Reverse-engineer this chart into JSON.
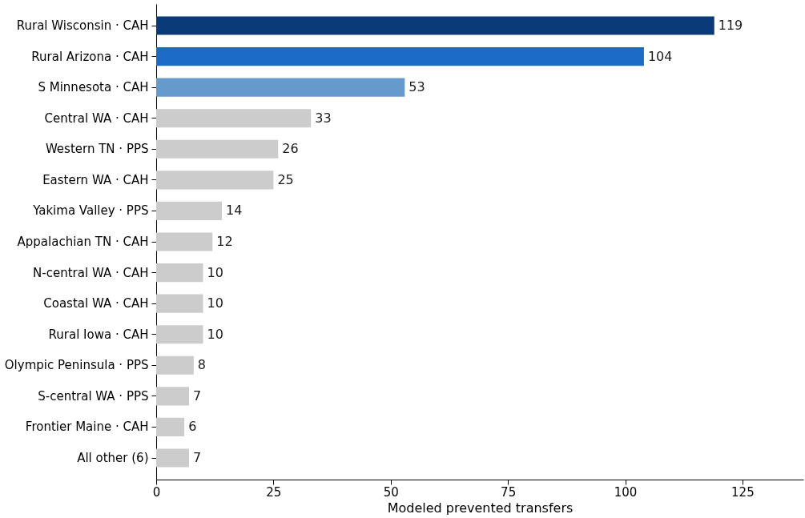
{
  "chart_data": {
    "type": "bar",
    "orientation": "horizontal",
    "xlabel": "Modeled prevented transfers",
    "categories": [
      "Rural Wisconsin · CAH",
      "Rural Arizona · CAH",
      "S Minnesota · CAH",
      "Central WA · CAH",
      "Western TN · PPS",
      "Eastern WA · CAH",
      "Yakima Valley · PPS",
      "Appalachian TN · CAH",
      "N-central WA · CAH",
      "Coastal WA · CAH",
      "Rural Iowa · CAH",
      "Olympic Peninsula · PPS",
      "S-central WA · PPS",
      "Frontier Maine · CAH",
      "All other (6)"
    ],
    "values": [
      119,
      104,
      53,
      33,
      26,
      25,
      14,
      12,
      10,
      10,
      10,
      8,
      7,
      6,
      7
    ],
    "colors": [
      "#0b3a78",
      "#1c6bc4",
      "#6699cc",
      "#cccccc",
      "#cccccc",
      "#cccccc",
      "#cccccc",
      "#cccccc",
      "#cccccc",
      "#cccccc",
      "#cccccc",
      "#cccccc",
      "#cccccc",
      "#cccccc",
      "#cccccc"
    ],
    "xlim": [
      0,
      138
    ],
    "xticks": [
      0,
      25,
      50,
      75,
      100,
      125
    ],
    "data_labels": true,
    "grid": false
  }
}
